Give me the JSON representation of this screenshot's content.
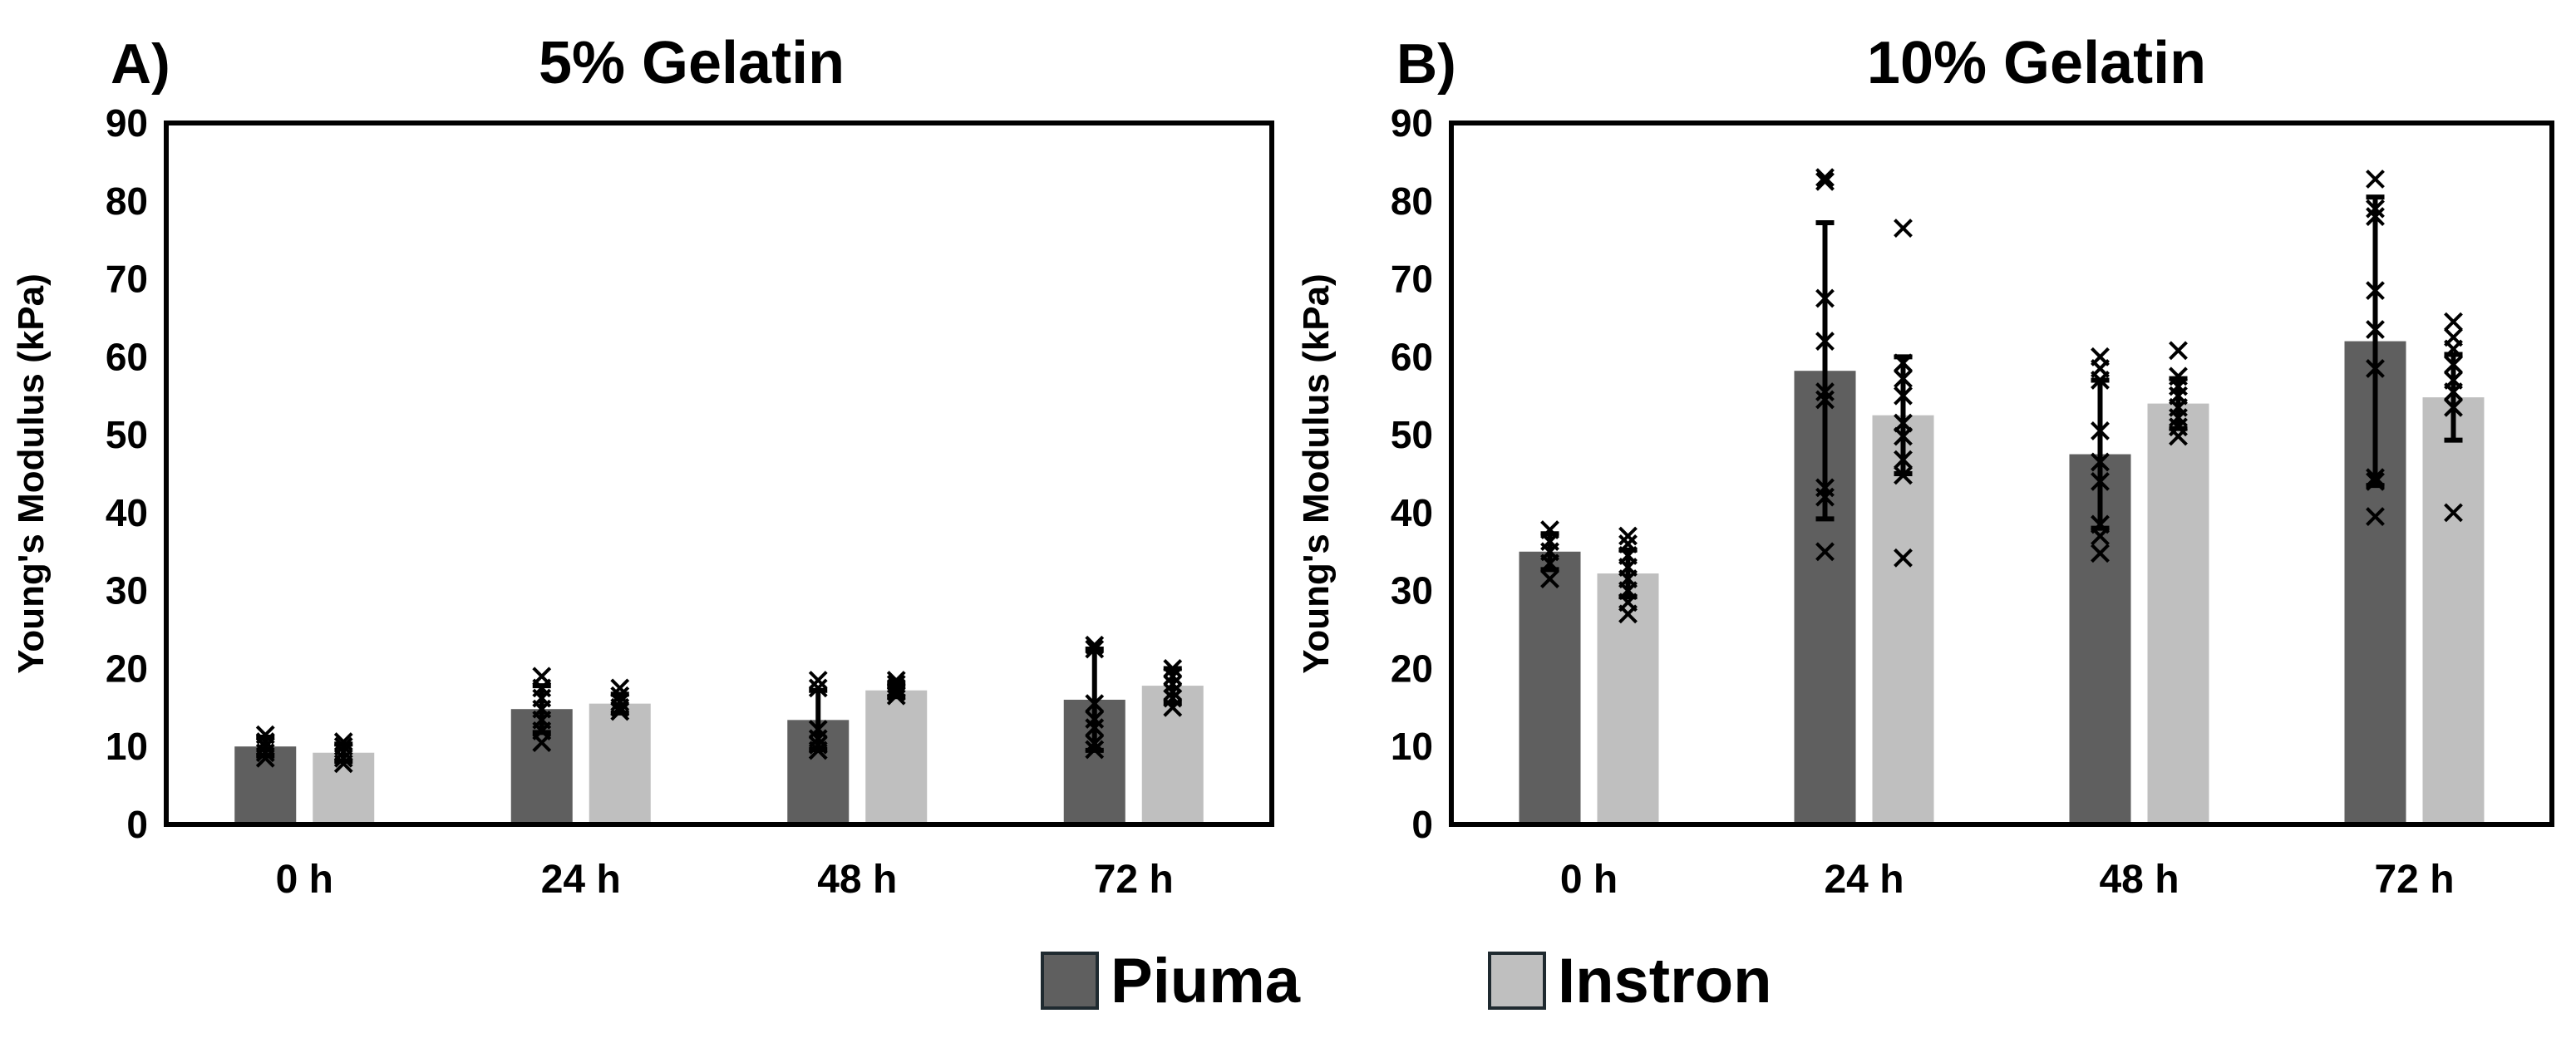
{
  "legend": {
    "piuma": {
      "label": "Piuma",
      "color": "#5f5f5f"
    },
    "instron": {
      "label": "Instron",
      "color": "#bfbfbf"
    }
  },
  "chart_data": [
    {
      "type": "bar",
      "panel_label": "A)",
      "title": "5% Gelatin",
      "xlabel": "",
      "ylabel": "Young's Modulus (kPa)",
      "ylim": [
        0,
        90
      ],
      "yticks": [
        0,
        10,
        20,
        30,
        40,
        50,
        60,
        70,
        80,
        90
      ],
      "categories": [
        "0 h",
        "24 h",
        "48 h",
        "72 h"
      ],
      "series": [
        {
          "name": "Piuma",
          "color": "#5f5f5f",
          "values": [
            10,
            14.8,
            13.4,
            16
          ],
          "errors": [
            1.2,
            3,
            3.8,
            6.5
          ],
          "points": [
            [
              8.5,
              9.2,
              10,
              10.6,
              11.5
            ],
            [
              10.5,
              12,
              13.4,
              14.8,
              16.2,
              17.5,
              19
            ],
            [
              9.5,
              10.2,
              11,
              12.2,
              17.5,
              18.5
            ],
            [
              9.6,
              10.4,
              12.4,
              13.5,
              15.5,
              22.5,
              23
            ]
          ]
        },
        {
          "name": "Instron",
          "color": "#bfbfbf",
          "values": [
            9.2,
            15.5,
            17.2,
            17.8
          ],
          "errors": [
            1.1,
            1.2,
            0.8,
            2.2
          ],
          "points": [
            [
              7.8,
              8.5,
              9.3,
              10,
              10.6
            ],
            [
              14.5,
              15,
              15.7,
              16.5,
              17.5
            ],
            [
              16.5,
              17,
              17.5,
              18,
              18.5
            ],
            [
              15,
              16.2,
              17,
              18,
              19,
              20
            ]
          ]
        }
      ]
    },
    {
      "type": "bar",
      "panel_label": "B)",
      "title": "10% Gelatin",
      "xlabel": "",
      "ylabel": "Young's Modulus (kPa)",
      "ylim": [
        0,
        90
      ],
      "yticks": [
        0,
        10,
        20,
        30,
        40,
        50,
        60,
        70,
        80,
        90
      ],
      "categories": [
        "0 h",
        "24 h",
        "48 h",
        "72 h"
      ],
      "series": [
        {
          "name": "Piuma",
          "color": "#5f5f5f",
          "values": [
            35,
            58.2,
            47.5,
            62
          ],
          "errors": [
            2.3,
            19,
            9.5,
            18.5
          ],
          "points": [
            [
              31.5,
              33.5,
              35,
              36.3,
              37.8
            ],
            [
              35,
              42,
              43.2,
              54.5,
              55.5,
              62,
              67.5,
              82.5,
              83
            ],
            [
              34.8,
              37,
              38.5,
              44,
              46.5,
              50.5,
              57,
              58.5,
              60
            ],
            [
              39.5,
              44,
              44.5,
              58.5,
              63.5,
              68.5,
              78,
              79,
              82.8
            ]
          ]
        },
        {
          "name": "Instron",
          "color": "#bfbfbf",
          "values": [
            32.2,
            52.5,
            54,
            54.8
          ],
          "errors": [
            3,
            7.5,
            3.2,
            5.5
          ],
          "points": [
            [
              27,
              28.5,
              30,
              31.5,
              33,
              34.5,
              36,
              37
            ],
            [
              34.2,
              44.8,
              46.8,
              49.8,
              51.5,
              55,
              57.2,
              59.2,
              76.5
            ],
            [
              49.8,
              51,
              52.2,
              53.5,
              55,
              56.2,
              57.5,
              60.8
            ],
            [
              40,
              53.5,
              55.5,
              57,
              59,
              61,
              62.5,
              64.5
            ]
          ]
        }
      ]
    }
  ]
}
